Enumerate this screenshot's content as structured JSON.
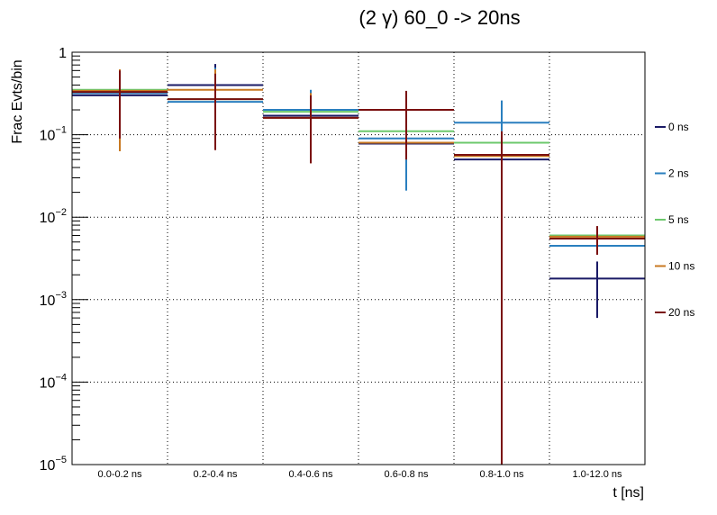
{
  "chart_data": {
    "type": "histogram",
    "title": "(2 γ) 60_0 -> 20ns",
    "xlabel": "t [ns]",
    "ylabel": "Frac Evts/bin",
    "yscale": "log",
    "ylim": [
      1e-05,
      1
    ],
    "yticks": [
      {
        "value": 1,
        "base": "1",
        "exp": ""
      },
      {
        "value": 0.1,
        "base": "10",
        "exp": "−1"
      },
      {
        "value": 0.01,
        "base": "10",
        "exp": "−2"
      },
      {
        "value": 0.001,
        "base": "10",
        "exp": "−3"
      },
      {
        "value": 0.0001,
        "base": "10",
        "exp": "−4"
      },
      {
        "value": 1e-05,
        "base": "10",
        "exp": "−5"
      }
    ],
    "categories": [
      "0.0-0.2 ns",
      "0.2-0.4 ns",
      "0.4-0.6 ns",
      "0.6-0.8 ns",
      "0.8-1.0 ns",
      "1.0-12.0 ns"
    ],
    "grid": true,
    "legend_position": "right",
    "series": [
      {
        "name": "0 ns",
        "color": "#1a1a66",
        "values": [
          0.3,
          0.4,
          0.17,
          0.078,
          0.05,
          0.0018
        ],
        "err_low": [
          0.09,
          0.25,
          0.16,
          0.07,
          0.05,
          0.0006
        ],
        "err_high": [
          0.58,
          0.72,
          0.2,
          0.085,
          0.058,
          0.0029
        ]
      },
      {
        "name": "2 ns",
        "color": "#2a7fbf",
        "values": [
          0.32,
          0.25,
          0.2,
          0.09,
          0.14,
          0.0045
        ],
        "err_low": [
          0.09,
          0.07,
          0.16,
          0.021,
          0.11,
          0.0045
        ],
        "err_high": [
          0.6,
          0.65,
          0.35,
          0.095,
          0.26,
          0.0045
        ]
      },
      {
        "name": "5 ns",
        "color": "#6cc86c",
        "values": [
          0.35,
          0.27,
          0.19,
          0.11,
          0.08,
          0.006
        ],
        "err_low": [
          0.1,
          0.08,
          0.16,
          0.1,
          0.08,
          0.006
        ],
        "err_high": [
          0.62,
          0.62,
          0.21,
          0.12,
          0.085,
          0.006
        ]
      },
      {
        "name": "10 ns",
        "color": "#c87820",
        "values": [
          0.34,
          0.35,
          0.16,
          0.08,
          0.055,
          0.0058
        ],
        "err_low": [
          0.063,
          0.09,
          0.045,
          0.05,
          0.05,
          0.0058
        ],
        "err_high": [
          0.62,
          0.62,
          0.32,
          0.25,
          0.06,
          0.0058
        ]
      },
      {
        "name": "20 ns",
        "color": "#7a0f0f",
        "values": [
          0.33,
          0.27,
          0.16,
          0.2,
          0.057,
          0.0055
        ],
        "err_low": [
          0.09,
          0.065,
          0.045,
          0.05,
          1e-05,
          0.0035
        ],
        "err_high": [
          0.6,
          0.55,
          0.3,
          0.34,
          0.11,
          0.0078
        ]
      }
    ]
  }
}
